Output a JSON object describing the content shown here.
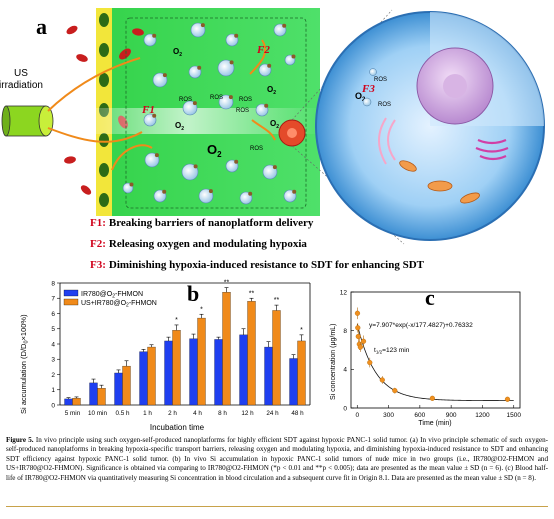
{
  "panel_a": {
    "letter": "a",
    "us_label_line1": "US",
    "us_label_line2": "irradiation",
    "o2": "O",
    "o2_sub": "2",
    "ros": "ROS",
    "f1_tag": "F1",
    "f2_tag": "F2",
    "f3_tag": "F3",
    "legend": [
      {
        "tag": "F1:",
        "text": "Breaking barriers of nanoplatform delivery",
        "color": "#d0021b"
      },
      {
        "tag": "F2:",
        "text": "Releasing oxygen and modulating hypoxia",
        "color": "#d0021b"
      },
      {
        "tag": "F3:",
        "text": "Diminishing hypoxia-induced resistance to SDT for enhancing SDT",
        "color": "#d0021b"
      }
    ]
  },
  "panel_b": {
    "letter": "b",
    "ylabel": "Si accumulation (D/D",
    "ylabel_sub": "0",
    "ylabel_tail": "×100%)",
    "xlabel": "Incubation time",
    "legend_1": "IR780@O",
    "legend_1_sub": "2",
    "legend_1_tail": "-FHMON",
    "legend_2": "US+IR780@O",
    "legend_2_sub": "2",
    "legend_2_tail": "-FHMON",
    "color_1": "#1f3ff0",
    "color_2": "#f08a1a"
  },
  "panel_c": {
    "letter": "c",
    "equation": "y=7.907*exp(-x/177.4827)+0.76332",
    "half_life_prefix": "t",
    "half_life_sub": "1/2",
    "half_life_value": "=123 min",
    "xlabel": "Time (min)",
    "ylabel": "Si concentration (μg/mL)"
  },
  "chart_data": [
    {
      "type": "bar",
      "title": "",
      "xlabel": "Incubation time",
      "ylabel": "Si accumulation (D/D0×100%)",
      "categories": [
        "5 min",
        "10 min",
        "0.5 h",
        "1 h",
        "2 h",
        "4 h",
        "8 h",
        "12 h",
        "24 h",
        "48 h"
      ],
      "ylim": [
        0,
        8
      ],
      "yticks": [
        0,
        1,
        2,
        3,
        4,
        5,
        6,
        7,
        8
      ],
      "legend_position": "top-left",
      "series": [
        {
          "name": "IR780@O2-FHMON",
          "color": "#1f3ff0",
          "values": [
            0.4,
            1.45,
            2.1,
            3.5,
            4.2,
            4.35,
            4.3,
            4.6,
            3.8,
            3.05
          ],
          "errors": [
            0.08,
            0.25,
            0.2,
            0.15,
            0.25,
            0.3,
            0.15,
            0.4,
            0.35,
            0.25
          ]
        },
        {
          "name": "US+IR780@O2-FHMON",
          "color": "#f08a1a",
          "values": [
            0.45,
            1.1,
            2.55,
            3.8,
            4.9,
            5.7,
            7.4,
            6.8,
            6.2,
            4.2
          ],
          "errors": [
            0.08,
            0.2,
            0.35,
            0.15,
            0.35,
            0.25,
            0.3,
            0.2,
            0.35,
            0.4
          ]
        }
      ],
      "annotations": [
        {
          "category": "2 h",
          "text": "*"
        },
        {
          "category": "4 h",
          "text": "*"
        },
        {
          "category": "8 h",
          "text": "**"
        },
        {
          "category": "12 h",
          "text": "**"
        },
        {
          "category": "24 h",
          "text": "**"
        },
        {
          "category": "48 h",
          "text": "*"
        }
      ]
    },
    {
      "type": "scatter",
      "title": "",
      "xlabel": "Time (min)",
      "ylabel": "Si concentration (μg/mL)",
      "xlim": [
        -60,
        1560
      ],
      "ylim": [
        0,
        12
      ],
      "xticks": [
        0,
        300,
        600,
        900,
        1200,
        1500
      ],
      "yticks": [
        0,
        4,
        8,
        12
      ],
      "points": [
        {
          "x": 2,
          "y": 9.8,
          "err": 0.6
        },
        {
          "x": 5,
          "y": 8.3,
          "err": 0.5
        },
        {
          "x": 10,
          "y": 7.4,
          "err": 0.7
        },
        {
          "x": 20,
          "y": 6.6,
          "err": 0.6
        },
        {
          "x": 30,
          "y": 6.3,
          "err": 0.5
        },
        {
          "x": 60,
          "y": 6.9,
          "err": 0.6
        },
        {
          "x": 120,
          "y": 4.7,
          "err": 0.5
        },
        {
          "x": 240,
          "y": 2.9,
          "err": 0.4
        },
        {
          "x": 360,
          "y": 1.8,
          "err": 0.3
        },
        {
          "x": 720,
          "y": 1.0,
          "err": 0.2
        },
        {
          "x": 1440,
          "y": 0.9,
          "err": 0.2
        }
      ],
      "fit": {
        "a": 7.907,
        "tau": 177.4827,
        "c": 0.76332
      }
    }
  ],
  "caption": {
    "lead": "Figure 5.",
    "text": "In vivo principle using such oxygen-self-produced nanoplatforms for highly efficient SDT against hypoxic PANC-1 solid tumor. (a) In vivo principle schematic of such oxygen-self-produced nanoplatforms in breaking hypoxia-specific transport barriers, releasing oxygen and modulating hypoxia, and diminishing hypoxia-induced resistance to SDT and enhancing SDT efficiency against hypoxic PANC-1 solid tumor. (b) In vivo Si accumulation in hypoxic PANC-1 solid tumors of nude mice in two groups (i.e., IR780@O2-FHMON and US+IR780@O2-FHMON). Significance is obtained via comparing to IR780@O2-FHMON (*p < 0.01 and **p < 0.005); data are presented as the mean value ± SD (n = 6). (c) Blood half-life of IR780@O2-FHMON via quantitatively measuring Si concentration in blood circulation and a subsequent curve fit in Origin 8.1. Data are presented as the mean value ± SD (n = 8)."
  }
}
